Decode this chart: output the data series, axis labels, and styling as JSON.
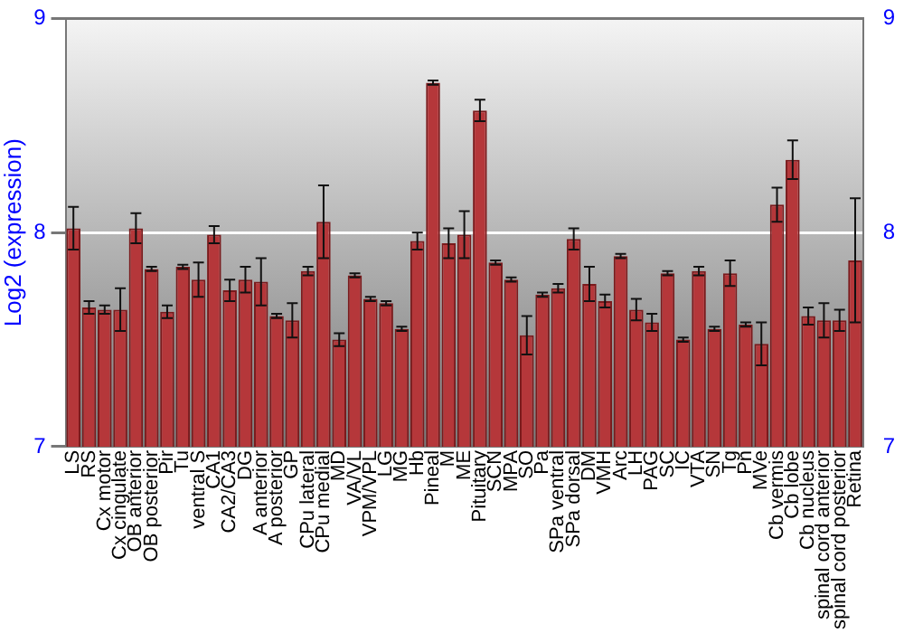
{
  "chart_data": {
    "type": "bar",
    "ylabel": "Log2 (expression)",
    "categories": [
      "LS",
      "RS",
      "Cx motor",
      "Cx cingulate",
      "OB anterior",
      "OB posterior",
      "Pir",
      "Tu",
      "ventral S",
      "CA1",
      "CA2/CA3",
      "DG",
      "A anterior",
      "A posterior",
      "GP",
      "CPu lateral",
      "CPu medial",
      "MD",
      "VA/VL",
      "VPM/VPL",
      "LG",
      "MG",
      "Hb",
      "Pineal",
      "M",
      "ME",
      "Pituitary",
      "SCN",
      "MPA",
      "SO",
      "Pa",
      "SPa ventral",
      "SPa dorsal",
      "DM",
      "VMH",
      "Arc",
      "LH",
      "PAG",
      "SC",
      "IC",
      "VTA",
      "SN",
      "Tg",
      "Pn",
      "MVe",
      "Cb vermis",
      "Cb lobe",
      "Cb nucleus",
      "spinal cord anterior",
      "spinal cord posterior",
      "Retina"
    ],
    "values": [
      8.02,
      7.65,
      7.64,
      7.64,
      8.02,
      7.83,
      7.63,
      7.84,
      7.78,
      7.99,
      7.73,
      7.78,
      7.77,
      7.61,
      7.59,
      7.82,
      8.05,
      7.5,
      7.8,
      7.69,
      7.67,
      7.55,
      7.96,
      8.7,
      7.95,
      7.99,
      8.57,
      7.86,
      7.78,
      7.52,
      7.71,
      7.74,
      7.97,
      7.76,
      7.68,
      7.89,
      7.64,
      7.58,
      7.81,
      7.5,
      7.82,
      7.55,
      7.81,
      7.57,
      7.48,
      8.13,
      8.34,
      7.61,
      7.59,
      7.59,
      7.87
    ],
    "errors": [
      0.1,
      0.03,
      0.02,
      0.1,
      0.07,
      0.01,
      0.03,
      0.01,
      0.08,
      0.04,
      0.05,
      0.06,
      0.11,
      0.01,
      0.08,
      0.02,
      0.17,
      0.03,
      0.01,
      0.01,
      0.01,
      0.01,
      0.04,
      0.01,
      0.07,
      0.11,
      0.05,
      0.01,
      0.01,
      0.09,
      0.01,
      0.02,
      0.05,
      0.08,
      0.03,
      0.01,
      0.05,
      0.04,
      0.01,
      0.01,
      0.02,
      0.01,
      0.06,
      0.01,
      0.1,
      0.08,
      0.09,
      0.04,
      0.08,
      0.05,
      0.29
    ],
    "color": "#b5373a",
    "ylim": [
      7,
      9
    ],
    "yticks": [
      7,
      8,
      9
    ],
    "y2lim": [
      7,
      9
    ],
    "y2ticks": [
      7,
      8,
      9
    ],
    "grid": "y",
    "legend": false
  }
}
